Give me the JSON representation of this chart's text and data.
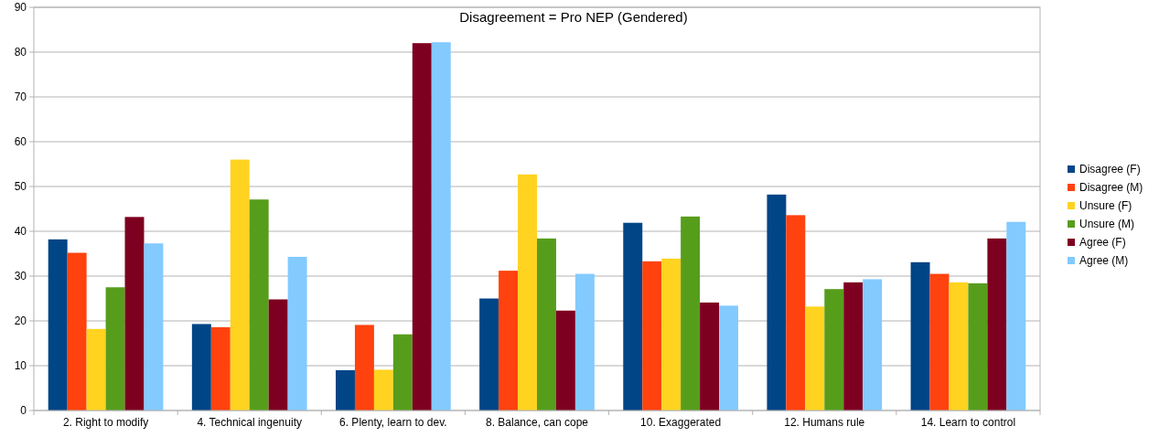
{
  "chart_data": {
    "type": "bar",
    "title": "Disagreement = Pro NEP (Gendered)",
    "categories": [
      "2. Right to modify",
      "4. Technical ingenuity",
      "6. Plenty, learn to dev.",
      "8. Balance, can cope",
      "10. Exaggerated",
      "12. Humans rule",
      "14. Learn to control"
    ],
    "series": [
      {
        "name": "Disagree (F)",
        "color": "#004586",
        "values": [
          38.2,
          19.3,
          9.0,
          25.0,
          41.9,
          48.2,
          33.1
        ]
      },
      {
        "name": "Disagree (M)",
        "color": "#ff420e",
        "values": [
          35.2,
          18.6,
          19.1,
          31.2,
          33.3,
          43.6,
          30.5
        ]
      },
      {
        "name": "Unsure (F)",
        "color": "#ffd320",
        "values": [
          18.2,
          56.0,
          9.1,
          52.7,
          33.9,
          23.2,
          28.6
        ]
      },
      {
        "name": "Unsure (M)",
        "color": "#579d1c",
        "values": [
          27.5,
          47.1,
          17.0,
          38.4,
          43.3,
          27.1,
          28.4
        ]
      },
      {
        "name": "Agree (F)",
        "color": "#7e0021",
        "values": [
          43.2,
          24.8,
          82.0,
          22.3,
          24.1,
          28.6,
          38.4
        ]
      },
      {
        "name": "Agree (M)",
        "color": "#83caff",
        "values": [
          37.3,
          34.3,
          82.2,
          30.5,
          23.4,
          29.3,
          42.1
        ]
      }
    ],
    "ylim": [
      0,
      90
    ],
    "yticks": [
      0,
      10,
      20,
      30,
      40,
      50,
      60,
      70,
      80,
      90
    ],
    "grid": "y",
    "legend": "right"
  }
}
